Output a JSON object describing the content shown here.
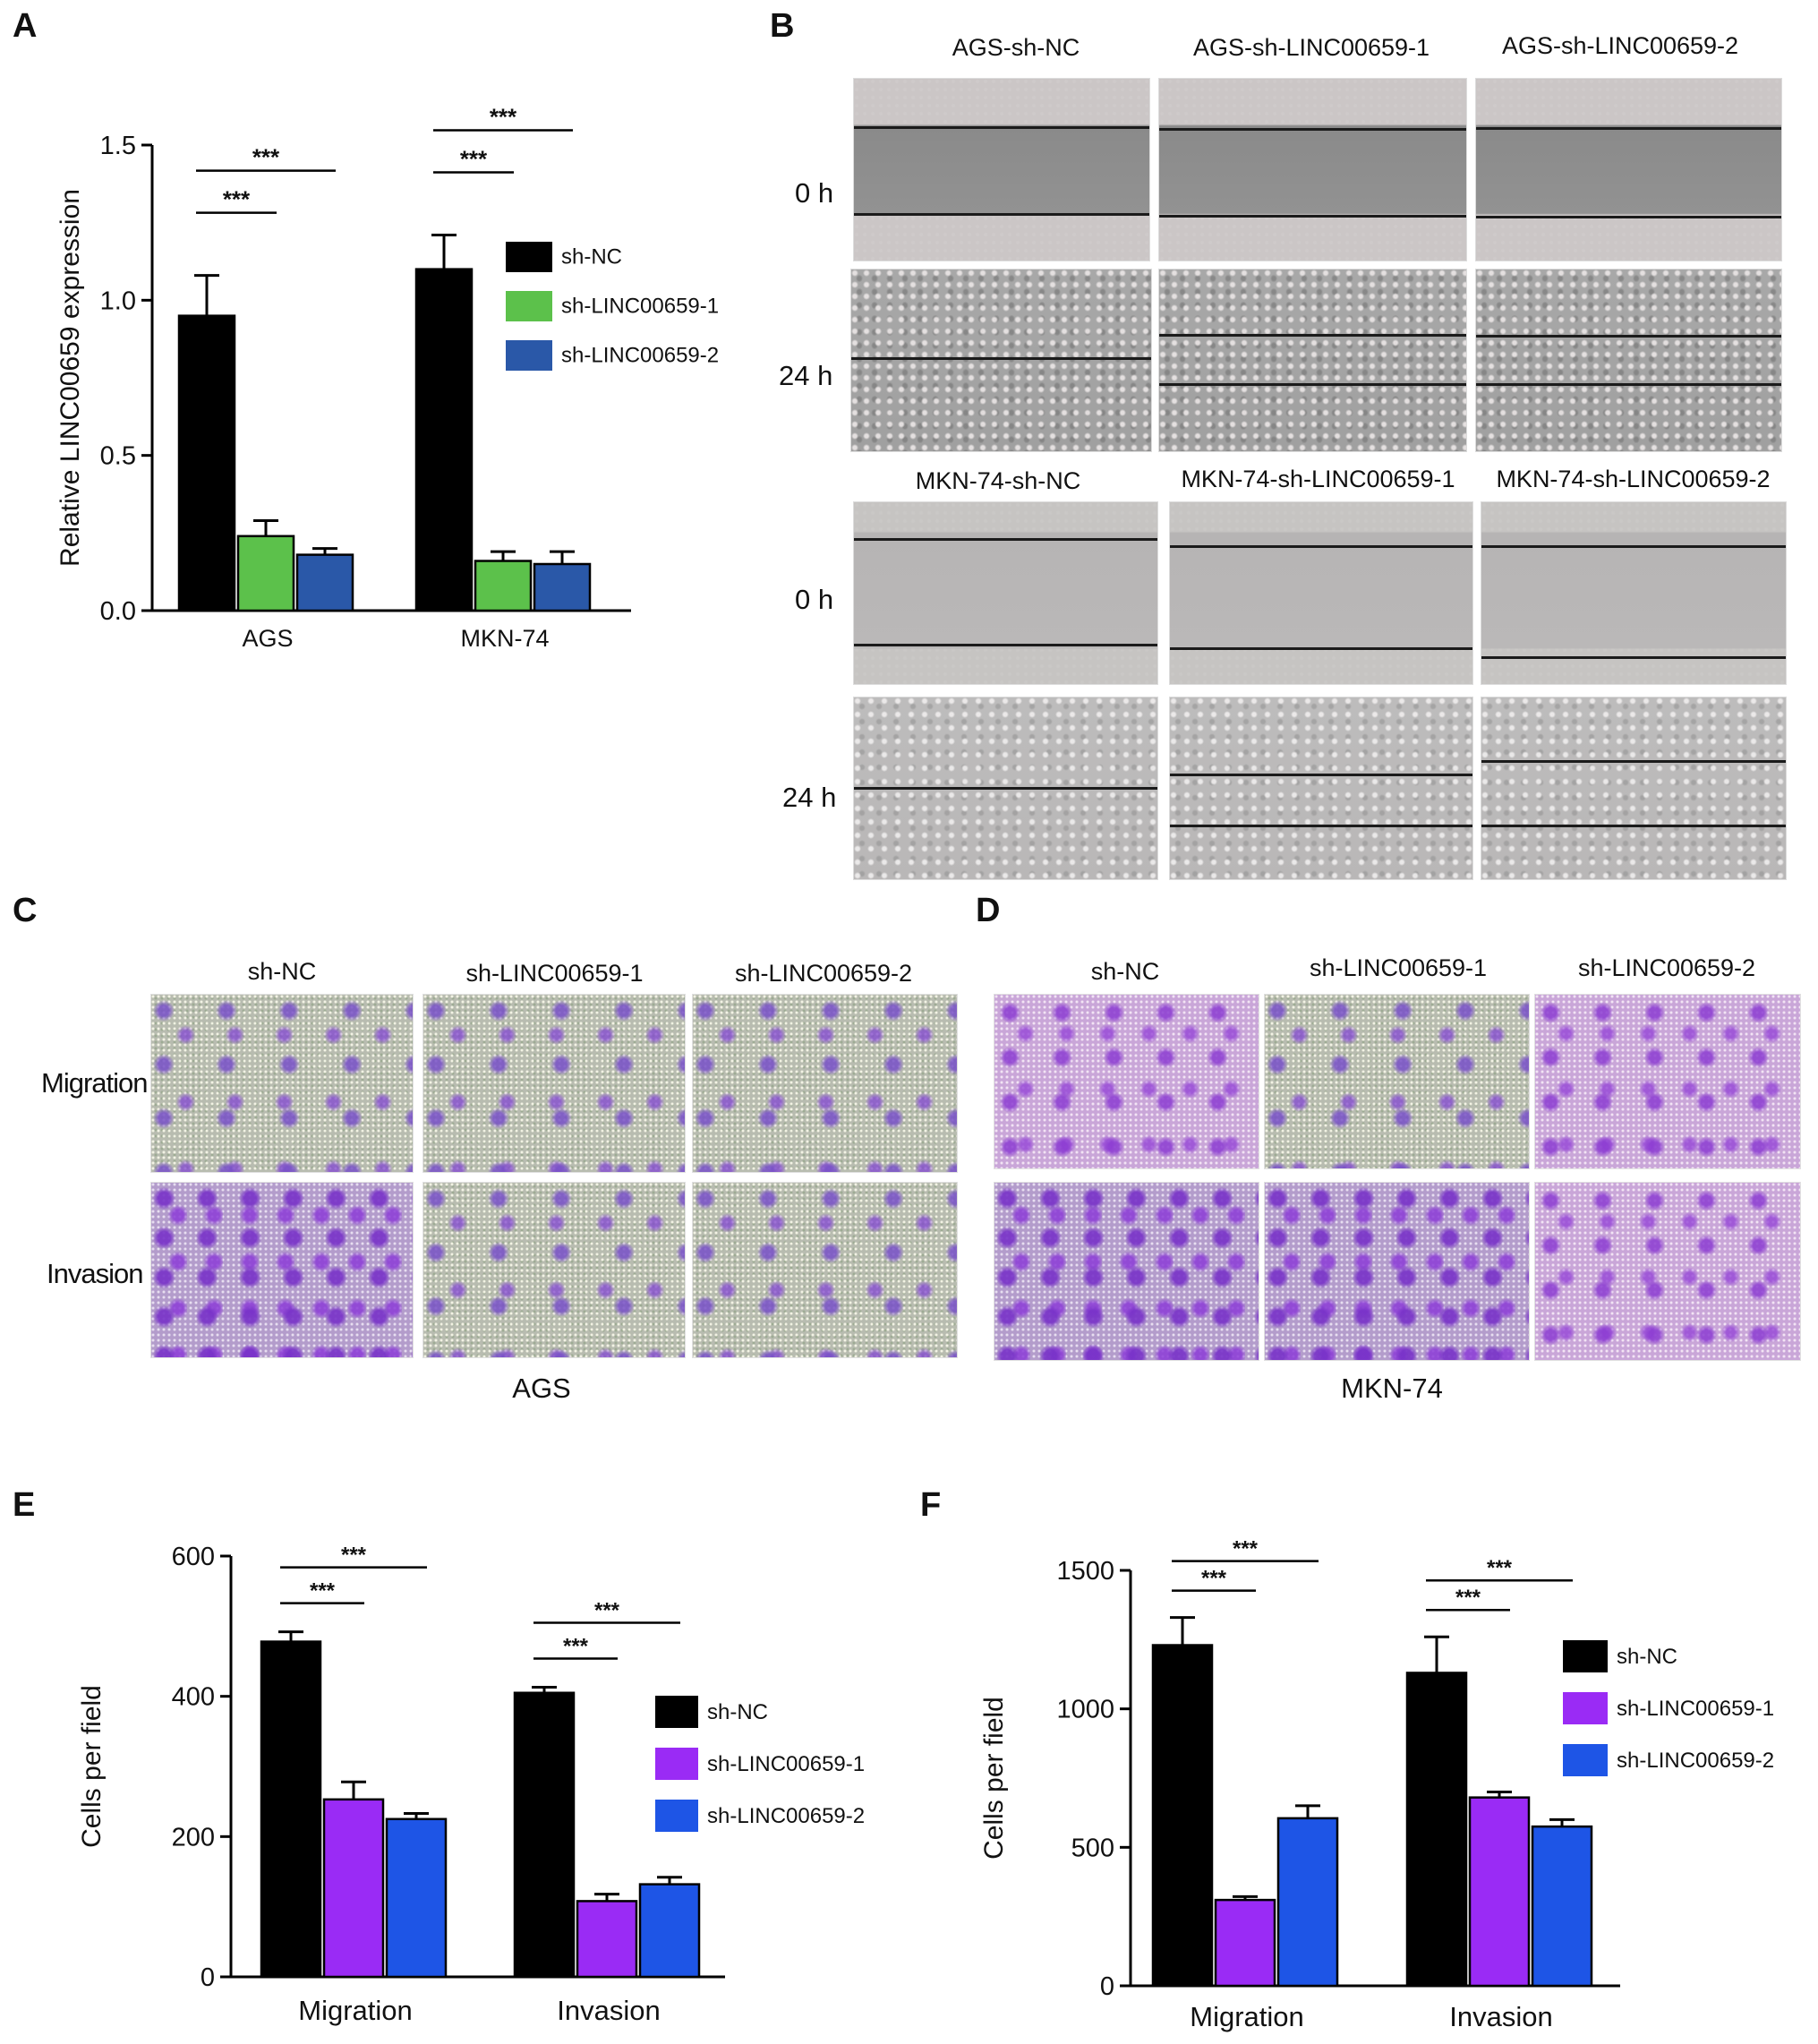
{
  "panels": {
    "A": "A",
    "B": "B",
    "C": "C",
    "D": "D",
    "E": "E",
    "F": "F"
  },
  "colors": {
    "black": "#000000",
    "green": "#5cc14b",
    "navy_blue": "#2a58a8",
    "purple": "#9a2bf5",
    "bright_blue": "#1e55e6"
  },
  "panel_B": {
    "ags_titles": [
      "AGS-sh-NC",
      "AGS-sh-LINC00659-1",
      "AGS-sh-LINC00659-2"
    ],
    "mkn_titles": [
      "MKN-74-sh-NC",
      "MKN-74-sh-LINC00659-1",
      "MKN-74-sh-LINC00659-2"
    ],
    "time_0h": "0 h",
    "time_24h": "24 h"
  },
  "panel_C": {
    "titles": [
      "sh-NC",
      "sh-LINC00659-1",
      "sh-LINC00659-2"
    ],
    "row_migration": "Migration",
    "row_invasion": "Invasion",
    "caption": "AGS"
  },
  "panel_D": {
    "titles": [
      "sh-NC",
      "sh-LINC00659-1",
      "sh-LINC00659-2"
    ],
    "caption": "MKN-74"
  },
  "chart_data": [
    {
      "panel": "A",
      "type": "bar",
      "categories": [
        "AGS",
        "MKN-74"
      ],
      "ylabel": "Relative LINC00659 expression",
      "ylim": [
        0,
        1.5
      ],
      "yticks": [
        0.0,
        0.5,
        1.0,
        1.5
      ],
      "ytick_labels": [
        "0.0",
        "0.5",
        "1.0",
        "1.5"
      ],
      "series": [
        {
          "name": "sh-NC",
          "color": "#000000",
          "values": [
            0.95,
            1.1
          ],
          "errors": [
            0.13,
            0.11
          ]
        },
        {
          "name": "sh-LINC00659-1",
          "color": "#5cc14b",
          "values": [
            0.24,
            0.16
          ],
          "errors": [
            0.05,
            0.03
          ]
        },
        {
          "name": "sh-LINC00659-2",
          "color": "#2a58a8",
          "values": [
            0.18,
            0.15
          ],
          "errors": [
            0.02,
            0.04
          ]
        }
      ],
      "legend": "right",
      "significance": [
        "***",
        "***",
        "***",
        "***"
      ]
    },
    {
      "panel": "E",
      "type": "bar",
      "categories": [
        "Migration",
        "Invasion"
      ],
      "ylabel": "Cells per field",
      "ylim": [
        0,
        600
      ],
      "yticks": [
        0,
        200,
        400,
        600
      ],
      "ytick_labels": [
        "0",
        "200",
        "400",
        "600"
      ],
      "series": [
        {
          "name": "sh-NC",
          "color": "#000000",
          "values": [
            478,
            405
          ],
          "errors": [
            14,
            8
          ]
        },
        {
          "name": "sh-LINC00659-1",
          "color": "#9a2bf5",
          "values": [
            253,
            108
          ],
          "errors": [
            25,
            10
          ]
        },
        {
          "name": "sh-LINC00659-2",
          "color": "#1e55e6",
          "values": [
            225,
            132
          ],
          "errors": [
            8,
            10
          ]
        }
      ],
      "legend": "right",
      "significance": [
        "***",
        "***",
        "***",
        "***"
      ]
    },
    {
      "panel": "F",
      "type": "bar",
      "categories": [
        "Migration",
        "Invasion"
      ],
      "ylabel": "Cells per field",
      "ylim": [
        0,
        1500
      ],
      "yticks": [
        0,
        500,
        1000,
        1500
      ],
      "ytick_labels": [
        "0",
        "500",
        "1000",
        "1500"
      ],
      "series": [
        {
          "name": "sh-NC",
          "color": "#000000",
          "values": [
            1230,
            1130
          ],
          "errors": [
            100,
            130
          ]
        },
        {
          "name": "sh-LINC00659-1",
          "color": "#9a2bf5",
          "values": [
            310,
            680
          ],
          "errors": [
            12,
            20
          ]
        },
        {
          "name": "sh-LINC00659-2",
          "color": "#1e55e6",
          "values": [
            605,
            575
          ],
          "errors": [
            45,
            25
          ]
        }
      ],
      "legend": "right",
      "significance": [
        "***",
        "***",
        "***",
        "***"
      ]
    }
  ]
}
